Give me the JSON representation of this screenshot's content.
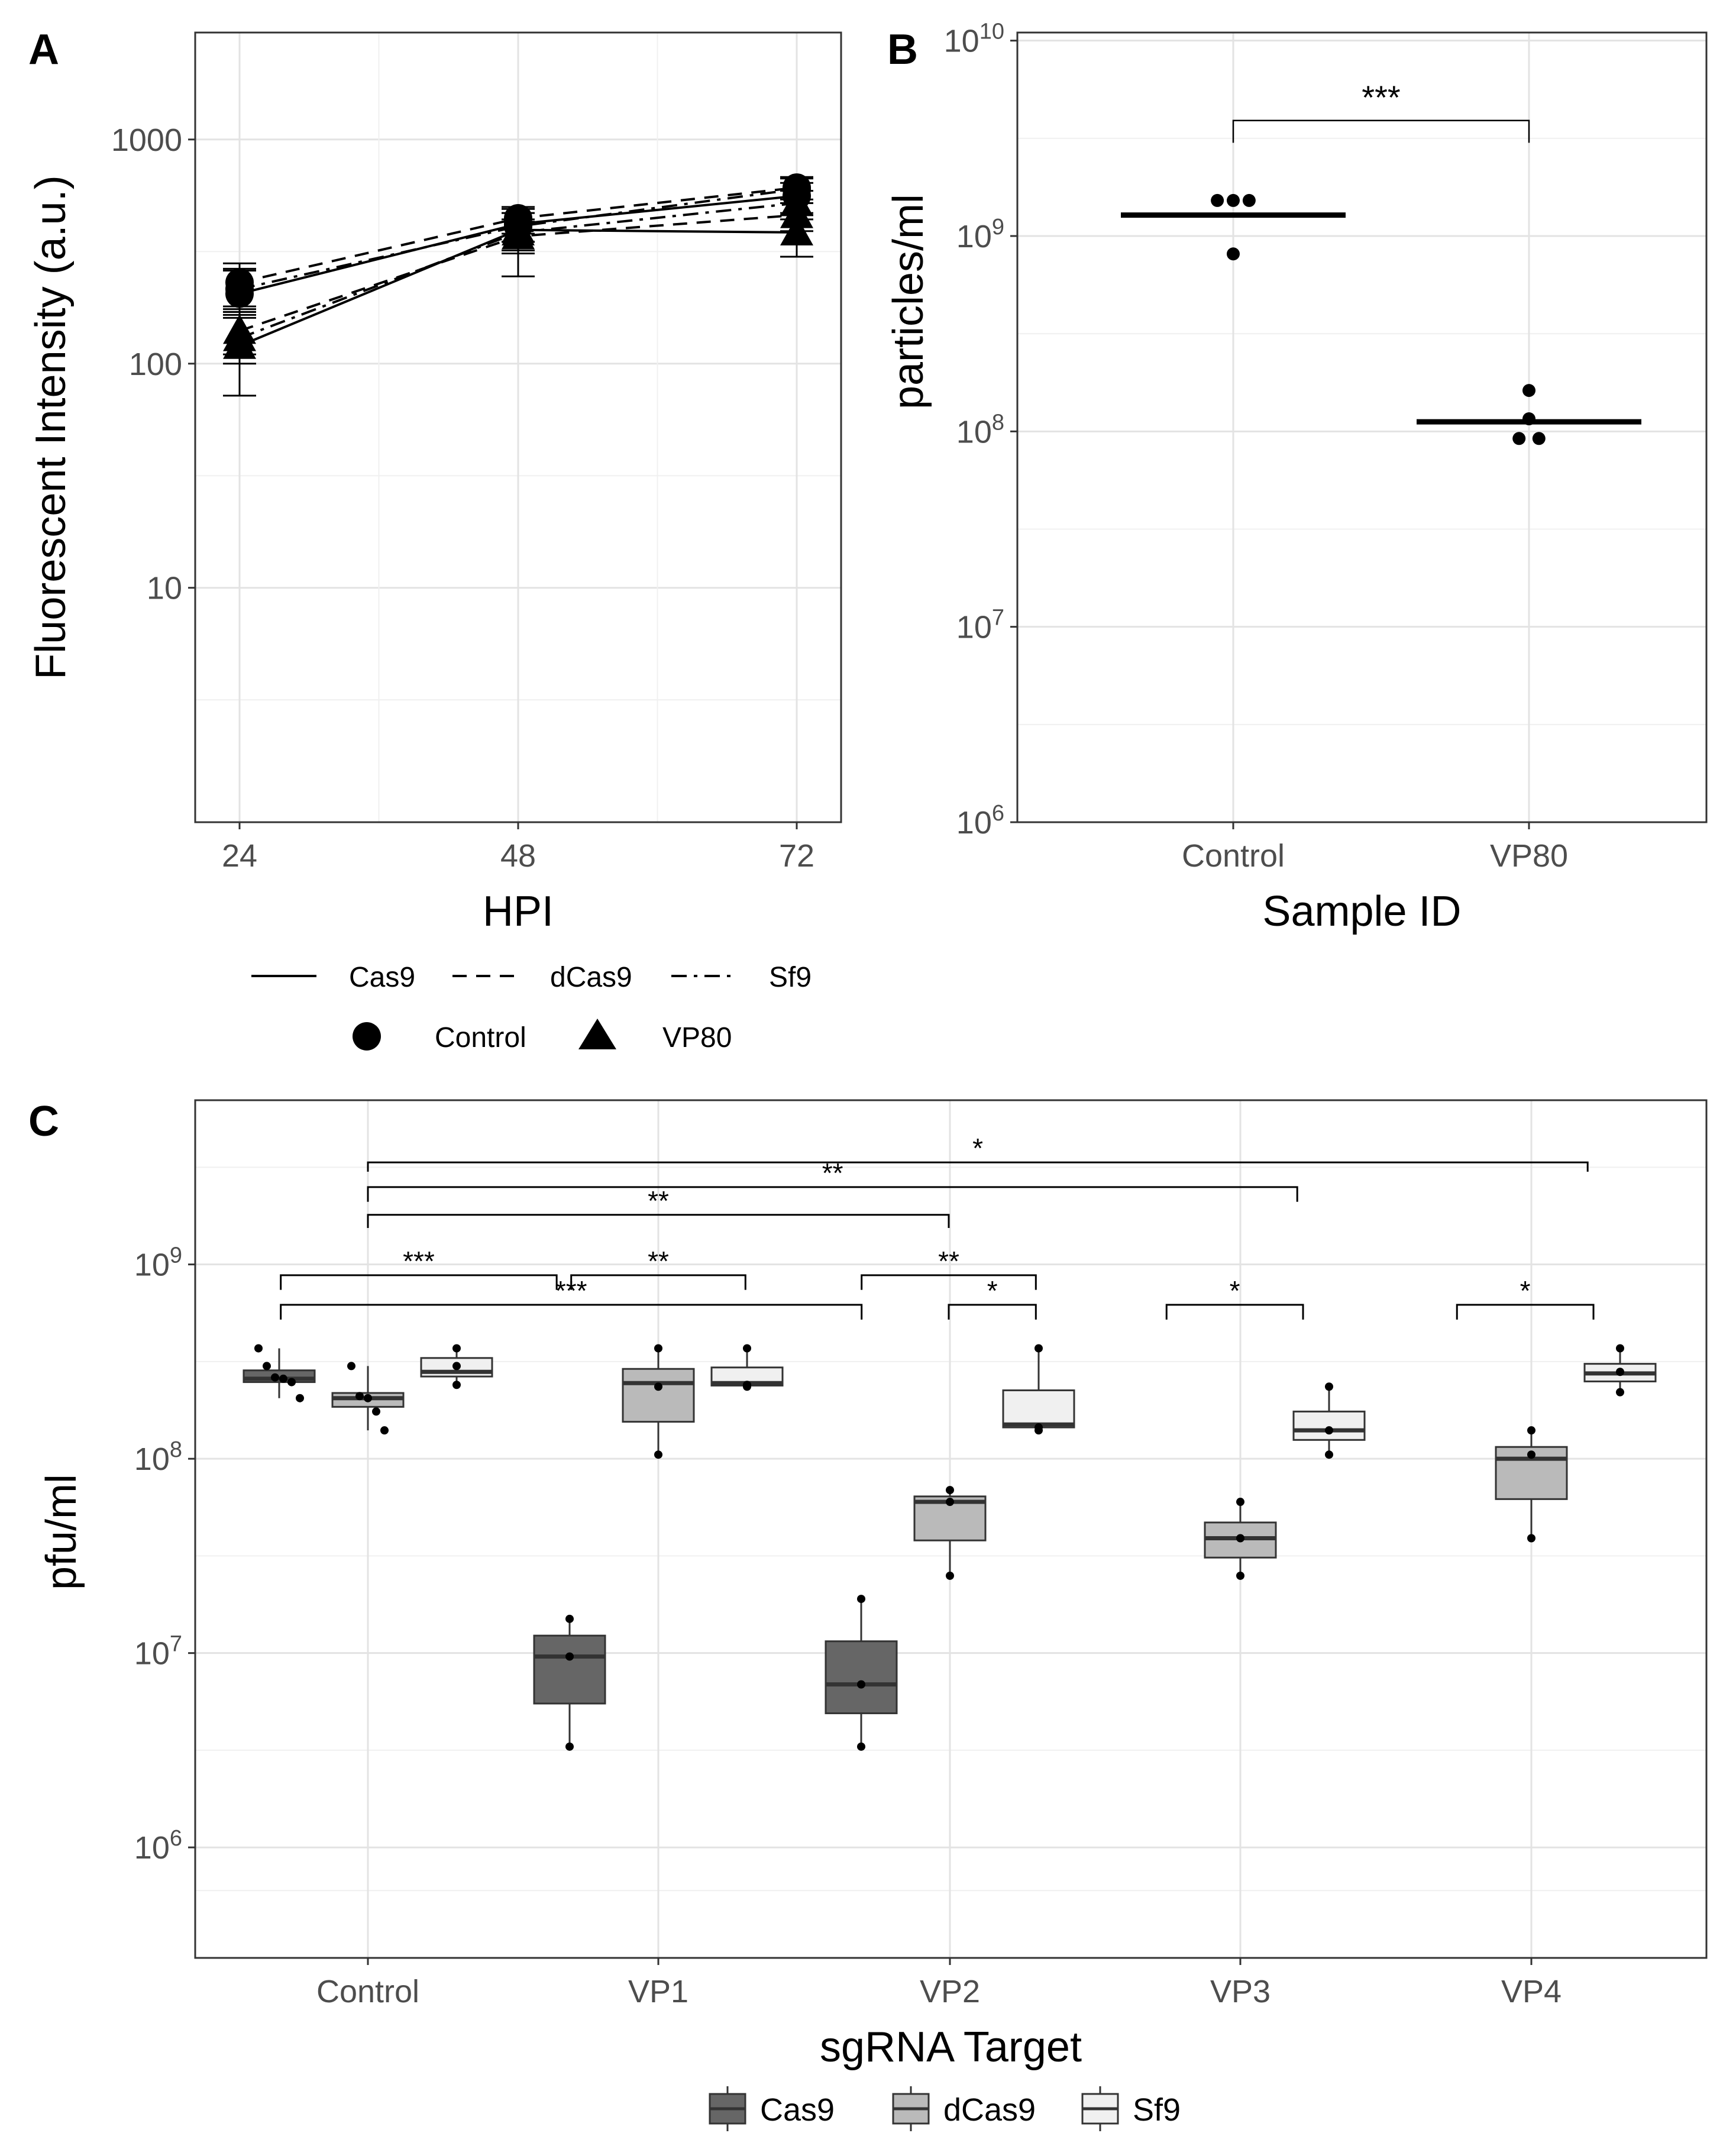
{
  "chart_data": [
    {
      "panel": "A",
      "type": "line",
      "xlabel": "HPI",
      "ylabel": "Fluorescent Intensity (a.u.)",
      "yscale": "log",
      "ylim": [
        0.9,
        3000
      ],
      "x": [
        24,
        48,
        72
      ],
      "xticks": [
        "24",
        "48",
        "72"
      ],
      "yticks": [
        {
          "v": 10,
          "label": "10"
        },
        {
          "v": 100,
          "label": "100"
        },
        {
          "v": 1000,
          "label": "1000"
        }
      ],
      "legend_linetype": [
        "Cas9",
        "dCas9",
        "Sf9"
      ],
      "legend_shape": [
        "Control",
        "VP80"
      ],
      "series": [
        {
          "cell": "Cas9",
          "sample": "Control",
          "style": "solid",
          "shape": "circle",
          "values": [
            205,
            420,
            560
          ],
          "err": [
            [
              160,
              265
            ],
            [
              350,
              490
            ],
            [
              470,
              640
            ]
          ]
        },
        {
          "cell": "Cas9",
          "sample": "VP80",
          "style": "solid",
          "shape": "triangle",
          "values": [
            120,
            395,
            385
          ],
          "err": [
            [
              72,
              170
            ],
            [
              245,
              470
            ],
            [
              300,
              460
            ]
          ]
        },
        {
          "cell": "dCas9",
          "sample": "Control",
          "style": "dashed",
          "shape": "circle",
          "values": [
            230,
            445,
            610
          ],
          "err": [
            [
              180,
              280
            ],
            [
              380,
              500
            ],
            [
              540,
              680
            ]
          ]
        },
        {
          "cell": "dCas9",
          "sample": "VP80",
          "style": "dashed",
          "shape": "triangle",
          "values": [
            140,
            370,
            460
          ],
          "err": [
            [
              110,
              175
            ],
            [
              310,
              430
            ],
            [
              390,
              520
            ]
          ]
        },
        {
          "cell": "Sf9",
          "sample": "Control",
          "style": "dotdash",
          "shape": "circle",
          "values": [
            215,
            410,
            600
          ],
          "err": [
            [
              170,
              260
            ],
            [
              350,
              470
            ],
            [
              520,
              670
            ]
          ]
        },
        {
          "cell": "Sf9",
          "sample": "VP80",
          "style": "dotdash",
          "shape": "triangle",
          "values": [
            130,
            385,
            520
          ],
          "err": [
            [
              100,
              165
            ],
            [
              320,
              440
            ],
            [
              440,
              590
            ]
          ]
        }
      ]
    },
    {
      "panel": "B",
      "type": "scatter",
      "xlabel": "Sample ID",
      "ylabel": "particles/ml",
      "yscale": "log",
      "ylim": [
        1000000,
        11000000000
      ],
      "categories": [
        "Control",
        "VP80"
      ],
      "yticks": [
        {
          "v": 1000000,
          "base": "10",
          "exp": "6"
        },
        {
          "v": 10000000,
          "base": "10",
          "exp": "7"
        },
        {
          "v": 100000000,
          "base": "10",
          "exp": "8"
        },
        {
          "v": 1000000000,
          "base": "10",
          "exp": "9"
        },
        {
          "v": 10000000000,
          "base": "10",
          "exp": "10"
        }
      ],
      "means": [
        1280000000,
        112000000
      ],
      "points": [
        [
          {
            "v": 1520000000,
            "jit": -0.16
          },
          {
            "v": 1520000000,
            "jit": 0.0
          },
          {
            "v": 1520000000,
            "jit": 0.16
          },
          {
            "v": 810000000,
            "jit": 0.0
          }
        ],
        [
          {
            "v": 162000000,
            "jit": 0.0
          },
          {
            "v": 116000000,
            "jit": 0.0
          },
          {
            "v": 92000000,
            "jit": -0.1
          },
          {
            "v": 92000000,
            "jit": 0.1
          }
        ]
      ],
      "significance": {
        "label": "***",
        "from": 0,
        "to": 1,
        "y": 3900000000,
        "drop": 3000000000
      }
    },
    {
      "panel": "C",
      "type": "boxplot",
      "xlabel": "sgRNA Target",
      "ylabel": "pfu/ml",
      "yscale": "log",
      "ylim": [
        270000,
        7000000000
      ],
      "categories": [
        "Control",
        "VP1",
        "VP2",
        "VP3",
        "VP4"
      ],
      "yticks": [
        {
          "v": 1000000,
          "base": "10",
          "exp": "6"
        },
        {
          "v": 10000000,
          "base": "10",
          "exp": "7"
        },
        {
          "v": 100000000,
          "base": "10",
          "exp": "8"
        },
        {
          "v": 1000000000,
          "base": "10",
          "exp": "9"
        }
      ],
      "legend": [
        {
          "name": "Cas9",
          "color": "#666666"
        },
        {
          "name": "dCas9",
          "color": "#bababa"
        },
        {
          "name": "Sf9",
          "color": "#f0f0f0"
        }
      ],
      "boxes": [
        {
          "cat": 0,
          "group": "Cas9",
          "min": 205000000,
          "q1": 248000000,
          "median": 258000000,
          "q3": 285000000,
          "max": 370000000,
          "points": [
            370000000,
            300000000,
            262000000,
            258000000,
            248000000,
            205000000
          ]
        },
        {
          "cat": 0,
          "group": "dCas9",
          "min": 140000000,
          "q1": 185000000,
          "median": 205000000,
          "q3": 218000000,
          "max": 300000000,
          "points": [
            300000000,
            210000000,
            205000000,
            175000000,
            140000000
          ]
        },
        {
          "cat": 0,
          "group": "Sf9",
          "min": 240000000,
          "q1": 265000000,
          "median": 280000000,
          "q3": 330000000,
          "max": 370000000,
          "points": [
            370000000,
            300000000,
            240000000
          ]
        },
        {
          "cat": 1,
          "group": "Cas9",
          "min": 3300000,
          "q1": 5500000,
          "median": 9600000,
          "q3": 12300000,
          "max": 15000000,
          "points": [
            15000000,
            9600000,
            3300000
          ]
        },
        {
          "cat": 1,
          "group": "dCas9",
          "min": 105000000,
          "q1": 155000000,
          "median": 245000000,
          "q3": 290000000,
          "max": 370000000,
          "points": [
            370000000,
            235000000,
            105000000
          ]
        },
        {
          "cat": 1,
          "group": "Sf9",
          "min": 235000000,
          "q1": 238000000,
          "median": 245000000,
          "q3": 295000000,
          "max": 370000000,
          "points": [
            370000000,
            240000000,
            235000000
          ]
        },
        {
          "cat": 2,
          "group": "Cas9",
          "min": 3300000,
          "q1": 4900000,
          "median": 6900000,
          "q3": 11500000,
          "max": 19000000,
          "points": [
            19000000,
            6900000,
            3300000
          ]
        },
        {
          "cat": 2,
          "group": "dCas9",
          "min": 25000000,
          "q1": 38000000,
          "median": 60000000,
          "q3": 64000000,
          "max": 69000000,
          "points": [
            69000000,
            60000000,
            25000000
          ]
        },
        {
          "cat": 2,
          "group": "Sf9",
          "min": 140000000,
          "q1": 145000000,
          "median": 150000000,
          "q3": 225000000,
          "max": 370000000,
          "points": [
            370000000,
            145000000,
            140000000
          ]
        },
        {
          "cat": 3,
          "group": "dCas9",
          "min": 25000000,
          "q1": 31000000,
          "median": 39000000,
          "q3": 47000000,
          "max": 60000000,
          "points": [
            60000000,
            39000000,
            25000000
          ]
        },
        {
          "cat": 3,
          "group": "Sf9",
          "min": 105000000,
          "q1": 125000000,
          "median": 140000000,
          "q3": 175000000,
          "max": 235000000,
          "points": [
            235000000,
            140000000,
            105000000
          ]
        },
        {
          "cat": 4,
          "group": "dCas9",
          "min": 39000000,
          "q1": 62000000,
          "median": 100000000,
          "q3": 115000000,
          "max": 140000000,
          "points": [
            140000000,
            105000000,
            39000000
          ]
        },
        {
          "cat": 4,
          "group": "Sf9",
          "min": 220000000,
          "q1": 250000000,
          "median": 275000000,
          "q3": 308000000,
          "max": 370000000,
          "points": [
            370000000,
            280000000,
            220000000
          ]
        }
      ],
      "significance": [
        {
          "label": "*",
          "from": 0,
          "to": 4.2,
          "y": 3350000000,
          "drop": 3000000000
        },
        {
          "label": "**",
          "from": 0,
          "to": 3.2,
          "y": 2500000000,
          "drop": 2100000000
        },
        {
          "label": "**",
          "from": 0,
          "to": 2.0,
          "y": 1800000000,
          "drop": 1540000000
        },
        {
          "label": "***",
          "from": -0.3,
          "to": 0.65,
          "y": 880000000,
          "drop": 740000000
        },
        {
          "label": "**",
          "from": 0.7,
          "to": 1.3,
          "y": 880000000,
          "drop": 740000000
        },
        {
          "label": "**",
          "from": 1.7,
          "to": 2.3,
          "y": 880000000,
          "drop": 740000000
        },
        {
          "label": "***",
          "from": -0.3,
          "to": 1.7,
          "y": 620000000,
          "drop": 520000000
        },
        {
          "label": "*",
          "from": 2.0,
          "to": 2.3,
          "y": 620000000,
          "drop": 520000000
        },
        {
          "label": "*",
          "from": 2.75,
          "to": 3.22,
          "y": 620000000,
          "drop": 520000000
        },
        {
          "label": "*",
          "from": 3.75,
          "to": 4.22,
          "y": 620000000,
          "drop": 520000000
        }
      ]
    }
  ],
  "panel_labels": {
    "a": "A",
    "b": "B",
    "c": "C"
  }
}
